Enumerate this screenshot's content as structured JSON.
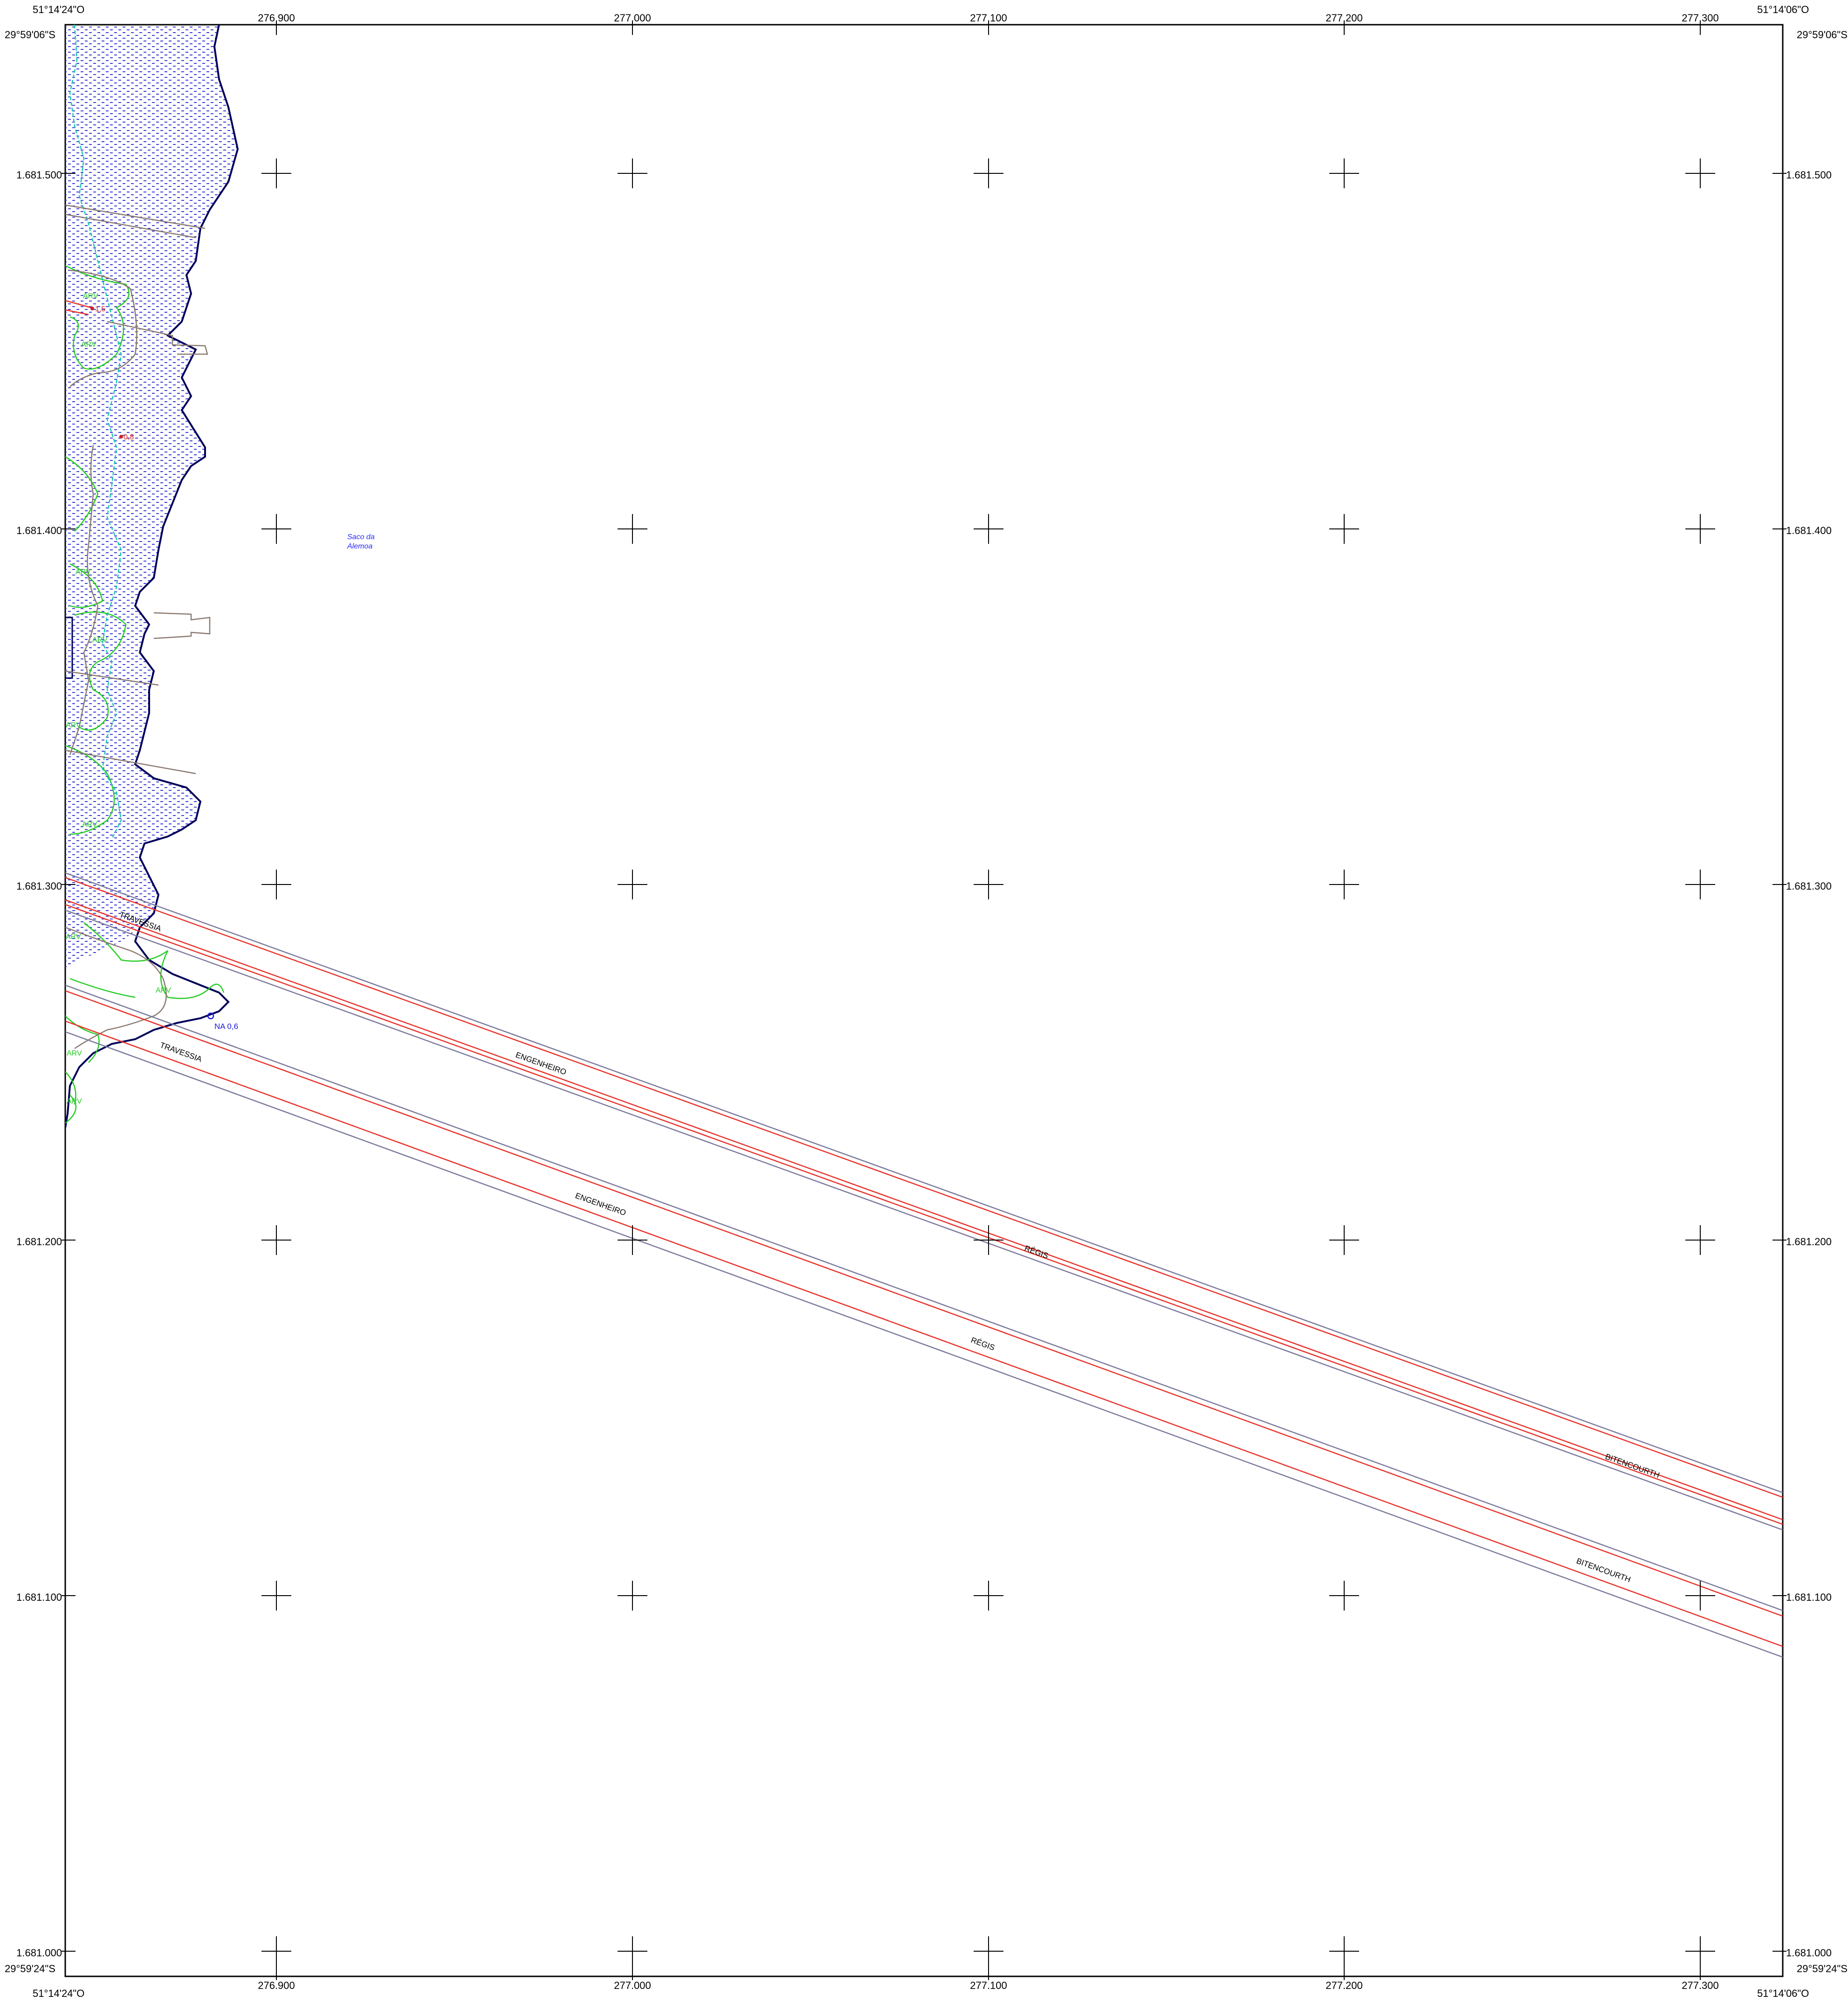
{
  "map": {
    "corners": {
      "top_left_lon": "51°14'24\"O",
      "top_left_lat": "29°59'06\"S",
      "top_right_lon": "51°14'06\"O",
      "top_right_lat": "29°59'06\"S",
      "bottom_left_lon": "51°14'24\"O",
      "bottom_left_lat": "29°59'24\"S",
      "bottom_right_lon": "51°14'06\"O",
      "bottom_right_lat": "29°59'24\"S"
    },
    "grid": {
      "eastings": [
        "276.900",
        "277.000",
        "277.100",
        "277.200",
        "277.300"
      ],
      "northings": [
        "1.681.500",
        "1.681.400",
        "1.681.300",
        "1.681.200",
        "1.681.100",
        "1.681.000"
      ]
    },
    "place_label": [
      "Saco da",
      "Alemoa"
    ],
    "vegetation_label": "ARV",
    "elevation_labels": [
      "1,5",
      "0,8"
    ],
    "water_level_label": "NA 0,6",
    "street_labels": {
      "travessia": "TRAVESSIA",
      "engenheiro": "ENGENHEIRO",
      "regis": "RÉGIS",
      "bitencourth": "BITENCOURTH"
    },
    "colors": {
      "frame": "#000000",
      "water_hatch": "#3a3ad8",
      "shoreline": "#00005a",
      "vegetation": "#22cc22",
      "contour": "#12c8b0",
      "road_red": "#e8322a",
      "road_gray": "#7a7a9c",
      "parcel": "#8a7a70"
    }
  }
}
